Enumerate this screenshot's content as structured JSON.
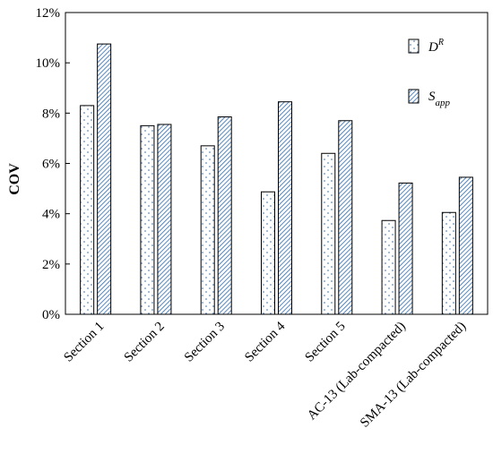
{
  "chart_data": {
    "type": "bar",
    "ylabel": "COV",
    "ylim": [
      0,
      12
    ],
    "yticks": [
      "0%",
      "2%",
      "4%",
      "6%",
      "8%",
      "10%",
      "12%"
    ],
    "categories": [
      "Section 1",
      "Section 2",
      "Section 3",
      "Section 4",
      "Section 5",
      "AC-13 (Lab-compacted)",
      "SMA-13 (Lab-compacted)"
    ],
    "series": [
      {
        "name": "D^R",
        "legend_base": "D",
        "legend_sup": "R",
        "pattern": "dots",
        "values": [
          8.3,
          7.5,
          6.7,
          4.87,
          6.4,
          3.73,
          4.05
        ]
      },
      {
        "name": "S_app",
        "legend_base": "S",
        "legend_sub": "app",
        "pattern": "diagonal-hatch",
        "values": [
          10.75,
          7.55,
          7.85,
          8.45,
          7.7,
          5.22,
          5.45
        ]
      }
    ],
    "legend_position": "top-right",
    "grid": false,
    "colors": {
      "pattern": "#2f6db3",
      "bar_fill": "#ffffff",
      "stroke": "#000000"
    }
  }
}
